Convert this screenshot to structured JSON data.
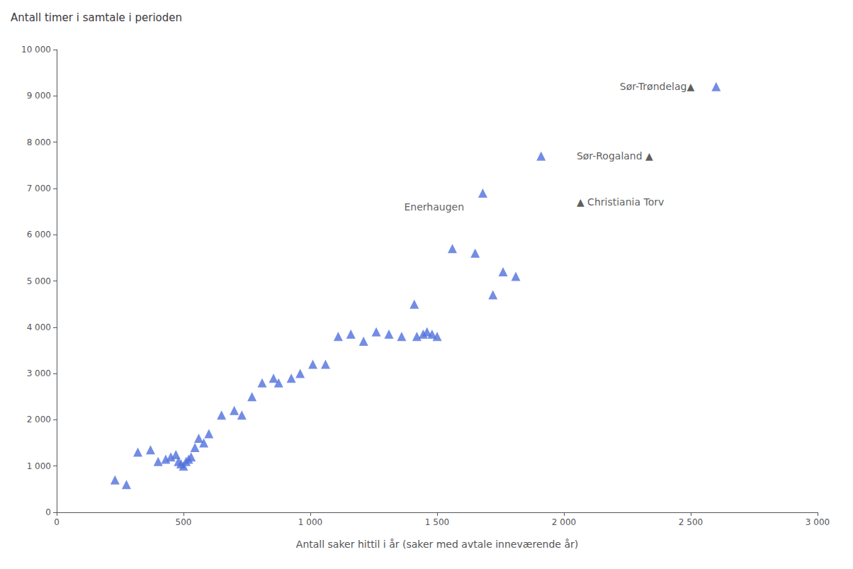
{
  "chart_data": {
    "type": "scatter",
    "title": "Antall timer i samtale i perioden",
    "xlabel": "Antall saker hittil i år (saker med avtale inneværende år)",
    "x": [
      230,
      275,
      320,
      370,
      400,
      430,
      450,
      470,
      480,
      490,
      500,
      510,
      520,
      530,
      545,
      560,
      580,
      600,
      650,
      700,
      730,
      770,
      810,
      855,
      875,
      925,
      960,
      1010,
      1060,
      1110,
      1160,
      1210,
      1260,
      1310,
      1360,
      1410,
      1420,
      1445,
      1460,
      1480,
      1500,
      1560,
      1650,
      1680,
      1720,
      1760,
      1810,
      1910,
      2600
    ],
    "values": [
      700,
      600,
      1300,
      1350,
      1100,
      1150,
      1200,
      1250,
      1100,
      1050,
      1000,
      1100,
      1150,
      1200,
      1400,
      1600,
      1500,
      1700,
      2100,
      2200,
      2100,
      2500,
      2800,
      2900,
      2800,
      2900,
      3000,
      3200,
      3200,
      3800,
      3850,
      3700,
      3900,
      3850,
      3800,
      4500,
      3800,
      3850,
      3900,
      3850,
      3800,
      5700,
      5600,
      6900,
      4700,
      5200,
      5100,
      7700,
      9200
    ],
    "xlim": [
      0,
      3000
    ],
    "ylim": [
      0,
      10000
    ],
    "xticks": [
      0,
      500,
      {
        "value": 1000,
        "label": "1 000"
      },
      {
        "value": 1500,
        "label": "1 500"
      },
      {
        "value": 2000,
        "label": "2 000"
      },
      {
        "value": 2500,
        "label": "2 500"
      },
      {
        "value": 3000,
        "label": "3 000"
      }
    ],
    "yticks": [
      0,
      {
        "value": 1000,
        "label": "1 000"
      },
      {
        "value": 2000,
        "label": "2 000"
      },
      {
        "value": 3000,
        "label": "3 000"
      },
      {
        "value": 4000,
        "label": "4 000"
      },
      {
        "value": 5000,
        "label": "5 000"
      },
      {
        "value": 6000,
        "label": "6 000"
      },
      {
        "value": 7000,
        "label": "7 000"
      },
      {
        "value": 8000,
        "label": "8 000"
      },
      {
        "value": 9000,
        "label": "9 000"
      },
      {
        "value": 10000,
        "label": "10 000"
      }
    ],
    "grid": false,
    "marker": "triangle",
    "annotations": [
      {
        "text": "Enerhaugen",
        "x": 1370,
        "y": 6600
      },
      {
        "text": "Sør-Trøndelag▲",
        "x": 2220,
        "y": 9200
      },
      {
        "text": "Sør-Rogaland ▲",
        "x": 2050,
        "y": 7700
      },
      {
        "text": "▲ Christiania Torv",
        "x": 2050,
        "y": 6700
      }
    ]
  }
}
